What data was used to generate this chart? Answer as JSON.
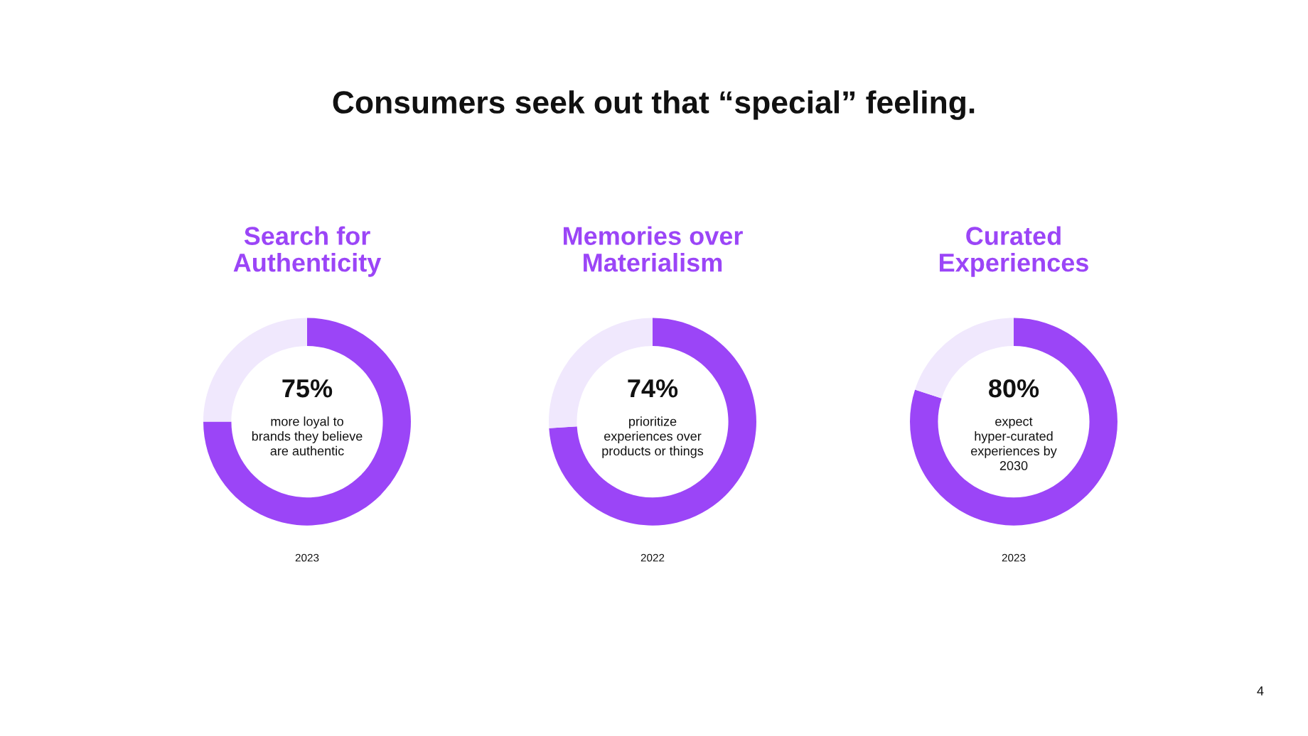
{
  "chart_data": [
    {
      "type": "other",
      "title": "Consumers seek out that “special” feeling.",
      "annotations": [
        "4"
      ]
    },
    {
      "type": "donut",
      "title": "Search for\nAuthenticity",
      "categories": [
        null,
        null
      ],
      "values": [
        75,
        25
      ],
      "colors": [
        "#9b45f7",
        "#f0e8fd"
      ],
      "value_labels": [
        "75%",
        null
      ],
      "annotations": [
        "more loyal to\nbrands they believe\nare authentic",
        "2023"
      ]
    },
    {
      "type": "donut",
      "title": "Memories over\nMaterialism",
      "categories": [
        null,
        null
      ],
      "values": [
        74,
        26
      ],
      "colors": [
        "#9b45f7",
        "#f0e8fd"
      ],
      "value_labels": [
        "74%",
        null
      ],
      "annotations": [
        "prioritize\nexperiences over\nproducts or things",
        "2022"
      ]
    },
    {
      "type": "donut",
      "title": "Curated\nExperiences",
      "categories": [
        null,
        null
      ],
      "values": [
        80,
        20
      ],
      "colors": [
        "#9b45f7",
        "#f0e8fd"
      ],
      "value_labels": [
        "80%",
        null
      ],
      "annotations": [
        "expect\nhyper-curated\nexperiences by\n2030",
        "2023"
      ]
    }
  ]
}
